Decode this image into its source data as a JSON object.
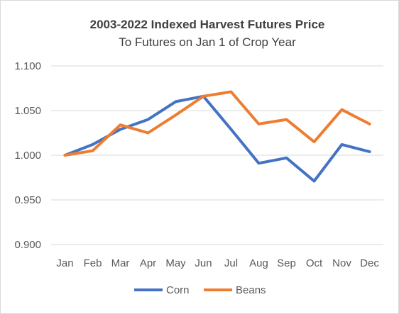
{
  "chart_data": {
    "type": "line",
    "title": "2003-2022 Indexed Harvest Futures Price",
    "subtitle": "To Futures on Jan 1 of Crop Year",
    "categories": [
      "Jan",
      "Feb",
      "Mar",
      "Apr",
      "May",
      "Jun",
      "Jul",
      "Aug",
      "Sep",
      "Oct",
      "Nov",
      "Dec"
    ],
    "yticks": [
      "0.900",
      "0.950",
      "1.000",
      "1.050",
      "1.100"
    ],
    "ylim": [
      0.9,
      1.1
    ],
    "grid": true,
    "legend_position": "bottom",
    "series": [
      {
        "name": "Corn",
        "color": "#4472c4",
        "values": [
          1.0,
          1.012,
          1.029,
          1.04,
          1.06,
          1.066,
          1.029,
          0.991,
          0.997,
          0.971,
          1.012,
          1.004
        ]
      },
      {
        "name": "Beans",
        "color": "#ed7d31",
        "values": [
          1.0,
          1.005,
          1.034,
          1.025,
          1.045,
          1.066,
          1.071,
          1.035,
          1.04,
          1.015,
          1.051,
          1.035
        ]
      }
    ]
  }
}
